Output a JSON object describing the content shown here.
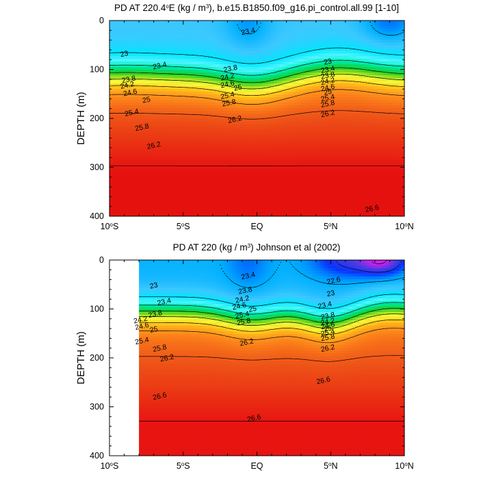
{
  "chart_data": [
    {
      "type": "contour",
      "title_prefix": "PD AT 220.4",
      "title_degree": "o",
      "title_mid": "E (kg / m",
      "title_sup": "3",
      "title_suffix": "), b.e15.B1850.f09_g16.pi_control.all.99 [1-10]",
      "ylabel": "DEPTH (m)",
      "xlim": [
        -10,
        10
      ],
      "ylim": [
        0,
        400
      ],
      "y_reversed": true,
      "x_ticks": [
        {
          "value": -10,
          "num": "10",
          "deg": "o",
          "hem": "S"
        },
        {
          "value": -5,
          "num": "5",
          "deg": "o",
          "hem": "S"
        },
        {
          "value": 0,
          "num": "EQ",
          "deg": "",
          "hem": ""
        },
        {
          "value": 5,
          "num": "5",
          "deg": "o",
          "hem": "N"
        },
        {
          "value": 10,
          "num": "10",
          "deg": "o",
          "hem": "N"
        }
      ],
      "y_ticks": [
        "0",
        "100",
        "200",
        "300",
        "400"
      ],
      "data_x_range": [
        -10,
        10
      ],
      "levels": [
        22.6,
        23.0,
        23.4,
        23.8,
        24.2,
        24.6,
        25.0,
        25.4,
        25.8,
        26.2,
        26.6
      ],
      "contour_labels": [
        {
          "text": "23.4",
          "lat": -0.6,
          "depth": 22
        },
        {
          "text": "23",
          "lat": -9.0,
          "depth": 68
        },
        {
          "text": "23.4",
          "lat": -6.6,
          "depth": 92
        },
        {
          "text": "23.8",
          "lat": -8.7,
          "depth": 120
        },
        {
          "text": "24.2",
          "lat": -8.8,
          "depth": 132
        },
        {
          "text": "24.6",
          "lat": -8.6,
          "depth": 147
        },
        {
          "text": "25",
          "lat": -7.5,
          "depth": 162
        },
        {
          "text": "25.4",
          "lat": -8.5,
          "depth": 188
        },
        {
          "text": "25.8",
          "lat": -7.8,
          "depth": 218
        },
        {
          "text": "26.2",
          "lat": -7.0,
          "depth": 255
        },
        {
          "text": "23.8",
          "lat": -1.8,
          "depth": 98
        },
        {
          "text": "24.2",
          "lat": -2.0,
          "depth": 115
        },
        {
          "text": "24.6",
          "lat": -2.0,
          "depth": 130
        },
        {
          "text": "25",
          "lat": -1.3,
          "depth": 137
        },
        {
          "text": "25.4",
          "lat": -2.0,
          "depth": 153
        },
        {
          "text": "25.8",
          "lat": -1.9,
          "depth": 168
        },
        {
          "text": "26.2",
          "lat": -1.5,
          "depth": 202
        },
        {
          "text": "23",
          "lat": 4.8,
          "depth": 84
        },
        {
          "text": "23.4",
          "lat": 4.8,
          "depth": 100
        },
        {
          "text": "23.8",
          "lat": 4.8,
          "depth": 112
        },
        {
          "text": "24.2",
          "lat": 4.8,
          "depth": 124
        },
        {
          "text": "24.6",
          "lat": 4.8,
          "depth": 137
        },
        {
          "text": "25",
          "lat": 4.8,
          "depth": 146
        },
        {
          "text": "25.4",
          "lat": 4.8,
          "depth": 158
        },
        {
          "text": "25.8",
          "lat": 4.8,
          "depth": 170
        },
        {
          "text": "26.2",
          "lat": 4.8,
          "depth": 190
        },
        {
          "text": "26.6",
          "lat": 7.8,
          "depth": 384
        }
      ]
    },
    {
      "type": "contour",
      "title_prefix": "PD AT 220 (kg / m",
      "title_degree": "",
      "title_mid": "",
      "title_sup": "3",
      "title_suffix": ") Johnson et al (2002)",
      "ylabel": "DEPTH (m)",
      "xlim": [
        -10,
        10
      ],
      "ylim": [
        0,
        400
      ],
      "y_reversed": true,
      "x_ticks": [
        {
          "value": -10,
          "num": "10",
          "deg": "o",
          "hem": "S"
        },
        {
          "value": -5,
          "num": "5",
          "deg": "o",
          "hem": "S"
        },
        {
          "value": 0,
          "num": "EQ",
          "deg": "",
          "hem": ""
        },
        {
          "value": 5,
          "num": "5",
          "deg": "o",
          "hem": "N"
        },
        {
          "value": 10,
          "num": "10",
          "deg": "o",
          "hem": "N"
        }
      ],
      "y_ticks": [
        "0",
        "100",
        "200",
        "300",
        "400"
      ],
      "data_x_range": [
        -8,
        10
      ],
      "levels": [
        22.2,
        22.6,
        23.0,
        23.4,
        23.8,
        24.2,
        24.6,
        25.0,
        25.4,
        25.8,
        26.2,
        26.6
      ],
      "contour_labels": [
        {
          "text": "23",
          "lat": -7.0,
          "depth": 52
        },
        {
          "text": "23.4",
          "lat": -6.3,
          "depth": 85
        },
        {
          "text": "23.8",
          "lat": -6.9,
          "depth": 110
        },
        {
          "text": "24.2",
          "lat": -7.9,
          "depth": 122
        },
        {
          "text": "24.6",
          "lat": -7.8,
          "depth": 135
        },
        {
          "text": "25",
          "lat": -7.0,
          "depth": 142
        },
        {
          "text": "25.4",
          "lat": -7.8,
          "depth": 165
        },
        {
          "text": "25.8",
          "lat": -6.6,
          "depth": 180
        },
        {
          "text": "26.2",
          "lat": -6.1,
          "depth": 200
        },
        {
          "text": "23.4",
          "lat": -0.6,
          "depth": 32
        },
        {
          "text": "23.8",
          "lat": -0.8,
          "depth": 62
        },
        {
          "text": "24.2",
          "lat": -1.0,
          "depth": 80
        },
        {
          "text": "24.6",
          "lat": -1.2,
          "depth": 94
        },
        {
          "text": "25",
          "lat": -0.3,
          "depth": 100
        },
        {
          "text": "25.4",
          "lat": -1.0,
          "depth": 112
        },
        {
          "text": "25.8",
          "lat": -0.9,
          "depth": 126
        },
        {
          "text": "26.2",
          "lat": -0.7,
          "depth": 168
        },
        {
          "text": "22.6",
          "lat": 5.2,
          "depth": 42
        },
        {
          "text": "23",
          "lat": 5.0,
          "depth": 68
        },
        {
          "text": "23.4",
          "lat": 4.6,
          "depth": 92
        },
        {
          "text": "23.8",
          "lat": 4.8,
          "depth": 114
        },
        {
          "text": "24.2",
          "lat": 4.8,
          "depth": 126
        },
        {
          "text": "24.6",
          "lat": 4.8,
          "depth": 134
        },
        {
          "text": "25",
          "lat": 4.8,
          "depth": 140
        },
        {
          "text": "25.4",
          "lat": 4.8,
          "depth": 148
        },
        {
          "text": "25.8",
          "lat": 4.8,
          "depth": 158
        },
        {
          "text": "26.2",
          "lat": 4.8,
          "depth": 180
        },
        {
          "text": "26.6",
          "lat": 4.5,
          "depth": 246
        },
        {
          "text": "26.6",
          "lat": -6.6,
          "depth": 278
        },
        {
          "text": "26.6",
          "lat": -0.2,
          "depth": 323
        }
      ]
    }
  ]
}
